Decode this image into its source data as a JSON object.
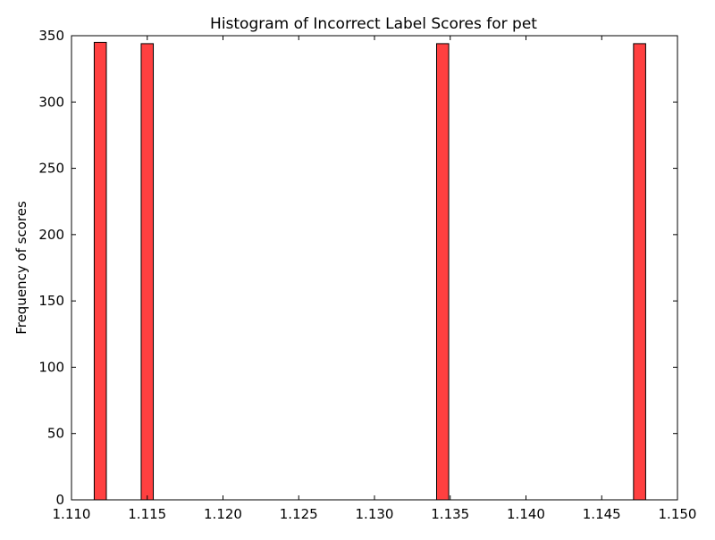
{
  "chart_data": {
    "type": "bar",
    "title": "Histogram of Incorrect Label Scores for pet",
    "xlabel": "",
    "ylabel": "Frequency of scores",
    "xlim": [
      1.11,
      1.15
    ],
    "ylim": [
      0,
      350
    ],
    "x_ticks": [
      "1.110",
      "1.115",
      "1.120",
      "1.125",
      "1.130",
      "1.135",
      "1.140",
      "1.145",
      "1.150"
    ],
    "y_ticks": [
      "0",
      "50",
      "100",
      "150",
      "200",
      "250",
      "300",
      "350"
    ],
    "bins": [
      {
        "x0": 1.1115,
        "x1": 1.1123,
        "value": 345
      },
      {
        "x0": 1.1146,
        "x1": 1.1154,
        "value": 344
      },
      {
        "x0": 1.1341,
        "x1": 1.1349,
        "value": 344
      },
      {
        "x0": 1.1471,
        "x1": 1.1479,
        "value": 344
      }
    ],
    "grid": false,
    "colors": {
      "bar_fill": "#ff4040",
      "bar_edge": "#000000",
      "axes": "#000000"
    }
  }
}
